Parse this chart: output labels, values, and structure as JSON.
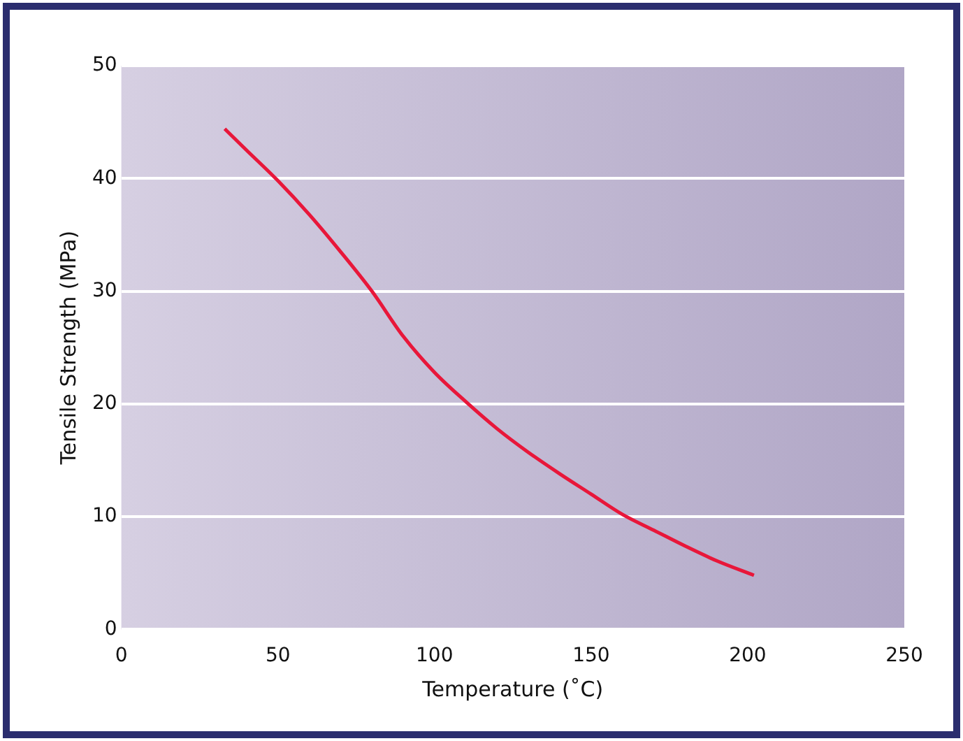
{
  "chart_data": {
    "type": "line",
    "xlabel": "Temperature (˚C)",
    "ylabel": "Tensile Strength (MPa)",
    "x": [
      33,
      40,
      50,
      60,
      70,
      80,
      90,
      100,
      110,
      120,
      130,
      140,
      150,
      160,
      170,
      180,
      190,
      202
    ],
    "series": [
      {
        "color": "#e8173a",
        "values": [
          44.4,
          42.5,
          39.8,
          36.8,
          33.5,
          30,
          26,
          22.8,
          20.2,
          17.8,
          15.7,
          13.8,
          12,
          10.2,
          8.8,
          7.4,
          6.1,
          4.8
        ]
      }
    ],
    "xlim": [
      0,
      250
    ],
    "xticks": [
      0,
      50,
      100,
      150,
      200,
      250
    ],
    "ylim": [
      0,
      50
    ],
    "yticks": [
      0,
      10,
      20,
      30,
      40,
      50
    ],
    "grid": "y",
    "legend": false,
    "marker": "none",
    "line_style": "solid"
  }
}
